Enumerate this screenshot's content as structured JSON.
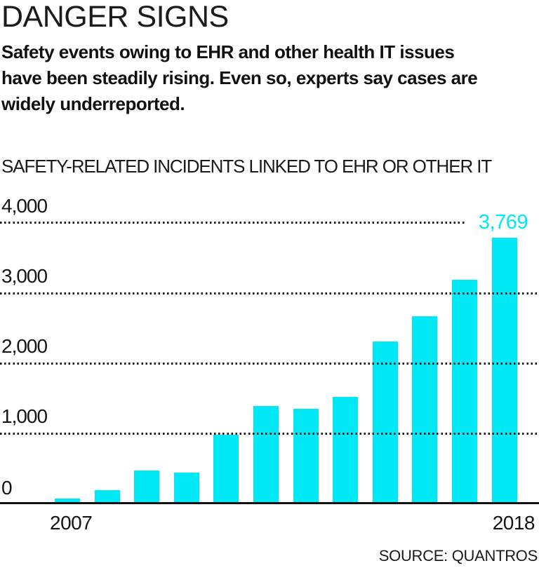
{
  "header": {
    "title": "DANGER SIGNS",
    "subtitle_lines": [
      "Safety events owing to EHR and other health IT issues",
      "have been steadily rising. Even so, experts say cases are",
      "widely underreported."
    ]
  },
  "chart": {
    "title": "SAFETY-RELATED INCIDENTS LINKED TO EHR OR OTHER IT",
    "y_ticks": [
      "4,000",
      "3,000",
      "2,000",
      "1,000",
      "0"
    ],
    "x_ticks": [
      "2007",
      "2018"
    ],
    "annotation": "3,769",
    "source": "SOURCE: QUANTROS",
    "colors": {
      "bar": "#00e7f5",
      "annotation": "#00e7f5",
      "gridline": "#1c1c1c",
      "axis": "#111111",
      "text": "#151515"
    }
  },
  "chart_data": {
    "type": "bar",
    "title": "SAFETY-RELATED INCIDENTS LINKED TO EHR OR OTHER IT",
    "categories": [
      "2007",
      "2008",
      "2009",
      "2010",
      "2011",
      "2012",
      "2013",
      "2014",
      "2015",
      "2016",
      "2017",
      "2018"
    ],
    "values": [
      50,
      170,
      450,
      420,
      960,
      1370,
      1335,
      1500,
      2290,
      2650,
      3170,
      3769
    ],
    "xlabel": "",
    "ylabel": "",
    "ylim": [
      0,
      4000
    ],
    "y_tick_interval": 1000,
    "grid": "dotted horizontal, drawn over bars",
    "legend": "none",
    "data_labels": [
      {
        "category": "2018",
        "label": "3,769"
      }
    ],
    "source": "SOURCE: QUANTROS"
  }
}
